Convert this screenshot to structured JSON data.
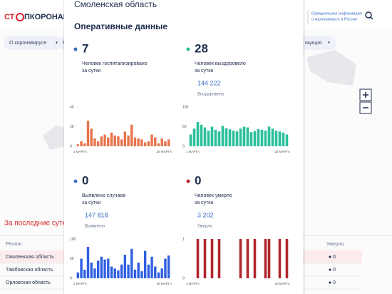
{
  "header": {
    "logo_left": "СТ",
    "logo_right": "ПКОРОНАВИ",
    "info_lines": [
      "Официальная информация",
      "о коронавирусе в России"
    ]
  },
  "nav": [
    "О коронавирусе",
    "М",
    "ицация"
  ],
  "section_title": "За последние сутк",
  "table": {
    "columns": [
      "Регион",
      "Умерло"
    ],
    "rows": [
      [
        "Смоленская область",
        "0"
      ],
      [
        "Тамбовская область",
        "0"
      ],
      [
        "Орловская область",
        "0"
      ]
    ]
  },
  "modal": {
    "title": "Смоленская область",
    "subtitle": "Оперативные данные",
    "panels": [
      {
        "value": 7,
        "label_lines": [
          "Человек госпитализировано",
          "за сутки"
        ],
        "dot_color": "#3a6fc4",
        "chart": {
          "type": "bar",
          "color": "#e8734a",
          "values": [
            2,
            5,
            3,
            26,
            18,
            8,
            5,
            10,
            12,
            9,
            14,
            11,
            10,
            7,
            15,
            11,
            22,
            9,
            8,
            7,
            4,
            5,
            12,
            9,
            3,
            8,
            5,
            7
          ],
          "ylim": [
            0,
            40
          ],
          "yticks": [
            0,
            20,
            40
          ],
          "x_labels": [
            "1 МАРТА",
            "28 МАРТА"
          ]
        }
      },
      {
        "value": 28,
        "label_lines": [
          "Человек выздоровело",
          "за сутки"
        ],
        "total": "144 222",
        "total_label": "Выздоровело",
        "dot_color": "#2bbf8f",
        "chart": {
          "type": "bar",
          "color": "#2bbf9a",
          "values": [
            30,
            45,
            62,
            55,
            48,
            40,
            50,
            42,
            38,
            52,
            46,
            43,
            40,
            38,
            45,
            50,
            48,
            36,
            39,
            44,
            42,
            40,
            50,
            45,
            40,
            38,
            35,
            30
          ],
          "ylim": [
            0,
            100
          ],
          "yticks": [
            0,
            50,
            100
          ],
          "x_labels": [
            "1 МАРТА",
            "28 МАРТА"
          ]
        }
      },
      {
        "value": 0,
        "label_lines": [
          "Выявлено случаев",
          "за сутки"
        ],
        "total": "147 818",
        "total_label": "Выявлено",
        "dot_color": "#3a6fc4",
        "chart": {
          "type": "bar",
          "color": "#2f5fe0",
          "values": [
            15,
            50,
            22,
            80,
            40,
            25,
            45,
            55,
            48,
            50,
            30,
            25,
            20,
            35,
            60,
            35,
            75,
            22,
            40,
            18,
            70,
            35,
            55,
            30,
            15,
            25,
            50,
            58
          ],
          "ylim": [
            0,
            100
          ],
          "yticks": [
            0,
            50,
            100
          ],
          "x_labels": [
            "2 МАРТА",
            "28 МАРТА"
          ]
        }
      },
      {
        "value": 0,
        "label_lines": [
          "Человек умерло",
          "за сутки"
        ],
        "total": "3 202",
        "total_label": "Умерло",
        "dot_color": "#b0282e",
        "chart": {
          "type": "bar",
          "color": "#b0282e",
          "values": [
            0,
            0,
            1,
            0,
            1,
            0,
            1,
            0,
            1,
            0,
            0,
            0,
            0,
            0,
            1,
            0,
            1,
            0,
            1,
            0,
            0,
            1,
            1,
            0,
            0,
            1,
            0,
            1
          ],
          "ylim": [
            0,
            1
          ],
          "yticks": [
            0,
            1
          ],
          "x_labels": [
            "2 МАРТА",
            "28 МАРТА"
          ]
        }
      }
    ]
  }
}
